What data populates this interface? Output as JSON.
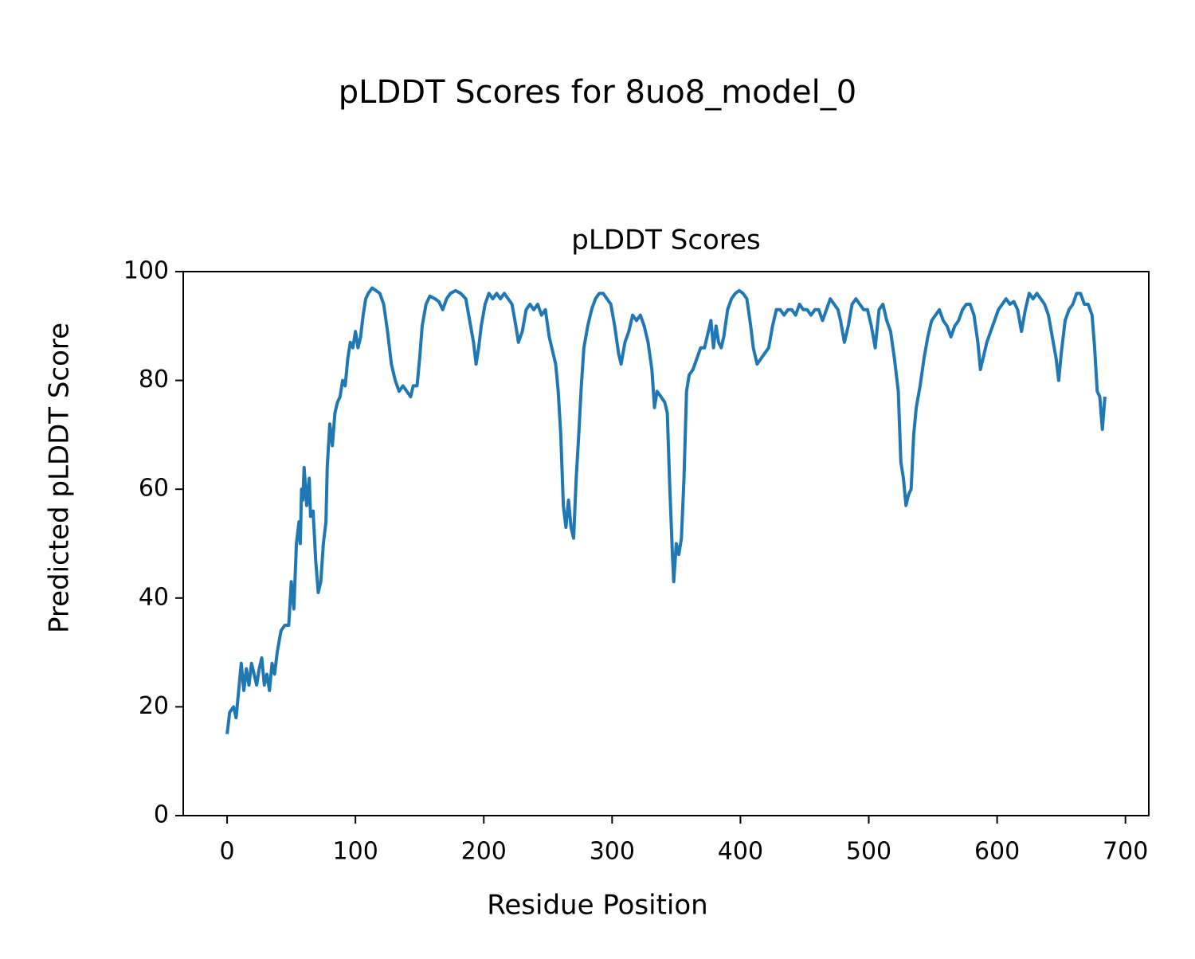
{
  "chart_data": {
    "type": "line",
    "title": "pLDDT Scores for 8uo8_model_0",
    "subtitle": "pLDDT Scores",
    "xlabel": "Residue Position",
    "ylabel": "Predicted pLDDT Score",
    "color": "#1f77b4",
    "xlim": [
      -34.2,
      718.2
    ],
    "ylim": [
      0,
      100
    ],
    "xticks": [
      0,
      100,
      200,
      300,
      400,
      500,
      600,
      700
    ],
    "yticks": [
      0,
      20,
      40,
      60,
      80,
      100
    ],
    "grid": false,
    "x": [
      0,
      2,
      5,
      7,
      9,
      11,
      13,
      15,
      17,
      19,
      21,
      23,
      25,
      27,
      29,
      31,
      33,
      35,
      37,
      39,
      42,
      45,
      48,
      50,
      52,
      54,
      56,
      57,
      58,
      59,
      60,
      62,
      64,
      65,
      67,
      69,
      71,
      73,
      75,
      77,
      78,
      80,
      82,
      84,
      86,
      88,
      90,
      92,
      94,
      96,
      98,
      100,
      102,
      104,
      106,
      108,
      110,
      113,
      116,
      119,
      122,
      125,
      128,
      131,
      134,
      137,
      140,
      143,
      145,
      148,
      150,
      152,
      155,
      158,
      162,
      165,
      168,
      171,
      174,
      178,
      182,
      186,
      189,
      192,
      194,
      196,
      198,
      201,
      204,
      207,
      210,
      213,
      216,
      219,
      222,
      225,
      227,
      230,
      233,
      236,
      239,
      242,
      245,
      248,
      251,
      254,
      256,
      258,
      260,
      262,
      264,
      266,
      268,
      270,
      272,
      274,
      276,
      278,
      281,
      284,
      287,
      290,
      293,
      296,
      299,
      302,
      305,
      307,
      310,
      313,
      316,
      319,
      322,
      325,
      328,
      331,
      333,
      335,
      338,
      341,
      343,
      345,
      347,
      348,
      350,
      352,
      354,
      356,
      358,
      360,
      363,
      366,
      369,
      372,
      375,
      377,
      379,
      381,
      383,
      385,
      387,
      390,
      393,
      396,
      399,
      402,
      405,
      408,
      410,
      413,
      416,
      419,
      422,
      425,
      428,
      431,
      434,
      437,
      440,
      443,
      446,
      449,
      452,
      455,
      458,
      461,
      464,
      467,
      470,
      473,
      476,
      478,
      481,
      484,
      487,
      490,
      493,
      496,
      499,
      502,
      505,
      508,
      511,
      514,
      517,
      520,
      523,
      525,
      527,
      529,
      531,
      533,
      535,
      537,
      540,
      543,
      546,
      549,
      552,
      555,
      558,
      561,
      564,
      567,
      570,
      573,
      576,
      579,
      582,
      585,
      587,
      589,
      592,
      595,
      598,
      601,
      604,
      607,
      610,
      613,
      616,
      619,
      622,
      625,
      628,
      631,
      634,
      637,
      640,
      643,
      646,
      648,
      650,
      653,
      656,
      659,
      662,
      665,
      668,
      671,
      674,
      676,
      678,
      680,
      682,
      684
    ],
    "values": [
      15,
      19,
      20,
      18,
      23,
      28,
      23,
      27,
      24,
      28,
      26,
      24,
      27,
      29,
      24,
      26,
      23,
      28,
      26,
      30,
      34,
      35,
      35,
      43,
      38,
      50,
      54,
      50,
      60,
      58,
      64,
      57,
      62,
      55,
      56,
      47,
      41,
      43,
      50,
      54,
      64,
      72,
      68,
      74,
      76,
      77,
      80,
      79,
      84,
      87,
      86,
      89,
      86,
      88,
      92,
      95,
      96,
      97,
      96.5,
      96,
      94,
      89,
      83,
      80,
      78,
      79,
      78,
      77,
      79,
      79,
      84,
      90,
      94,
      95.5,
      95,
      94.5,
      93,
      95,
      96,
      96.5,
      96,
      95,
      91,
      87,
      83,
      86,
      90,
      94,
      96,
      95,
      96,
      95,
      96,
      95,
      94,
      90,
      87,
      89,
      93,
      94,
      93,
      94,
      92,
      93,
      88,
      85,
      83,
      78,
      70,
      57,
      53,
      58,
      53,
      51,
      62,
      70,
      79,
      86,
      90,
      93,
      95,
      96,
      96,
      95,
      94,
      90,
      85,
      83,
      87,
      89,
      92,
      91,
      92,
      90,
      87,
      82,
      75,
      78,
      77,
      76,
      74,
      60,
      48,
      43,
      50,
      48,
      51,
      62,
      78,
      81,
      82,
      84,
      86,
      86,
      89,
      91,
      86,
      90,
      87,
      86,
      88,
      93,
      95,
      96,
      96.5,
      96,
      95,
      90,
      86,
      83,
      84,
      85,
      86,
      90,
      93,
      93,
      92,
      93,
      93,
      92,
      94,
      93,
      93,
      92,
      93,
      93,
      91,
      93,
      95,
      94,
      93,
      91,
      87,
      90,
      94,
      95,
      94,
      93,
      93,
      90,
      86,
      93,
      94,
      91,
      89,
      84,
      78,
      65,
      62,
      57,
      59,
      60,
      70,
      75,
      79,
      84,
      88,
      91,
      92,
      93,
      91,
      90,
      88,
      90,
      91,
      93,
      94,
      94,
      92,
      87,
      82,
      84,
      87,
      89,
      91,
      93,
      94,
      95,
      94,
      94.5,
      93,
      89,
      93,
      96,
      95,
      96,
      95,
      94,
      92,
      88,
      84,
      80,
      85,
      91,
      93,
      94,
      96,
      96,
      94,
      94,
      92,
      86,
      78,
      77,
      71,
      77
    ]
  }
}
